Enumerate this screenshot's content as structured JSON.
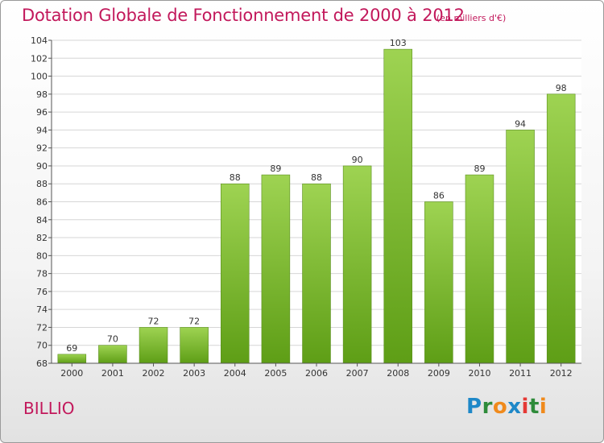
{
  "header": {
    "title": "Dotation Globale de Fonctionnement de 2000 à 2012",
    "subtitle": "(en milliers d'€)"
  },
  "footer": {
    "commune": "BILLIO",
    "logo_text": "Proxiti",
    "logo_letters": [
      "P",
      "r",
      "o",
      "x",
      "i",
      "t",
      "i"
    ],
    "logo_colors": [
      "#1e88c8",
      "#2e8b3a",
      "#f08a1c",
      "#1e88c8",
      "#e53935",
      "#2e8b3a",
      "#f08a1c"
    ]
  },
  "colors": {
    "title": "#c2185b",
    "bar_top": "#9ed352",
    "bar_bottom": "#5e9e16"
  },
  "chart_data": {
    "type": "bar",
    "categories": [
      "2000",
      "2001",
      "2002",
      "2003",
      "2004",
      "2005",
      "2006",
      "2007",
      "2008",
      "2009",
      "2010",
      "2011",
      "2012"
    ],
    "values": [
      69,
      70,
      72,
      72,
      88,
      89,
      88,
      90,
      103,
      86,
      89,
      94,
      98
    ],
    "ylim": [
      68,
      104
    ],
    "yticks": [
      "68",
      "70",
      "72",
      "74",
      "76",
      "78",
      "80",
      "82",
      "84",
      "86",
      "88",
      "90",
      "92",
      "94",
      "96",
      "98",
      "100",
      "102",
      "104"
    ],
    "grid": "horizontal"
  }
}
